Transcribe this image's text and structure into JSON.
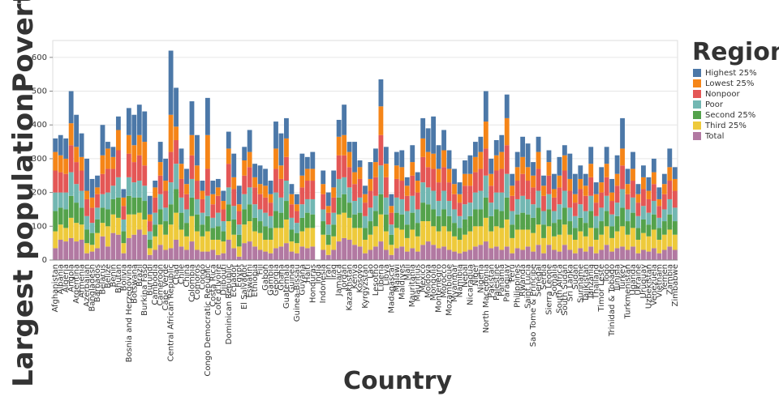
{
  "chart_data": {
    "type": "stacked_bar",
    "x_label": "Country",
    "y_label": "Largest populationPoverty in Ye",
    "legend_title": "Region",
    "legend": "right",
    "grid": true,
    "ylim": [
      0,
      650
    ],
    "yticks": [
      0,
      100,
      200,
      300,
      400,
      500,
      600
    ],
    "categories": [
      "Afghanistan",
      "Albania",
      "Algeria",
      "Angola",
      "Argentina",
      "Armenia",
      "Azerbaijan",
      "Bangladesh",
      "Barbados",
      "Belarus",
      "Belize",
      "Benin",
      "Bhutan",
      "Bolivia",
      "Bosnia and Herzegovina",
      "Botswana",
      "Brazil",
      "Burkina Faso",
      "Burundi",
      "Cambodia",
      "Cameroon",
      "Cape Verde",
      "Central African Republic",
      "Chad",
      "Chile",
      "China",
      "Colombia",
      "Comoros",
      "Congo",
      "Congo Democratic Republic",
      "Costa Rica",
      "Cote d'Ivoire",
      "Djibouti",
      "Dominican Republic",
      "Ecuador",
      "Egypt",
      "El Salvador",
      "Eswatini",
      "Ethiopia",
      "Fiji",
      "Gabon",
      "Gambia",
      "Georgia",
      "Ghana",
      "Guatemala",
      "Guinea",
      "Guinea-Bissau",
      "Guyana",
      "Haiti",
      "Honduras",
      "India",
      "Indonesia",
      "Iran",
      "Iraq",
      "Jamaica",
      "Jordan",
      "Kazakhstan",
      "Kenya",
      "Kosovo",
      "Kyrgyzstan",
      "Lao",
      "Lesotho",
      "Liberia",
      "Libya",
      "Madagascar",
      "Malawi",
      "Maldives",
      "Mali",
      "Mauritania",
      "Mauritius",
      "Mexico",
      "Moldova",
      "Mongolia",
      "Montenegro",
      "Morocco",
      "Mozambique",
      "Myanmar",
      "Namibia",
      "Nepal",
      "Nicaragua",
      "Niger",
      "Nigeria",
      "North Macedonia",
      "Pakistan",
      "Palestine",
      "Panama",
      "Paraguay",
      "Peru",
      "Philippines",
      "Rwanda",
      "Saint Lucia",
      "Sao Tome & Principe",
      "Senegal",
      "Serbia",
      "Sierra Leone",
      "Somalia",
      "South Africa",
      "South Sudan",
      "Sri Lanka",
      "Sudan",
      "Suriname",
      "Tajikistan",
      "Tanzania",
      "Thailand",
      "Timor Leste",
      "Togo",
      "Trinidad & Tobago",
      "Tunisia",
      "Turkey",
      "Turkmenistan",
      "Uganda",
      "Ukraine",
      "Uruguay",
      "Uzbekistan",
      "Venezuela",
      "Vietnam",
      "Yemen",
      "Zambia",
      "Zimbabwe"
    ],
    "series": [
      {
        "name": "Highest 25%",
        "color": "#4c78a8",
        "values": [
          40,
          60,
          60,
          95,
          95,
          70,
          95,
          55,
          35,
          90,
          20,
          30,
          40,
          25,
          80,
          90,
          90,
          90,
          55,
          20,
          60,
          65,
          190,
          115,
          45,
          45,
          100,
          90,
          30,
          110,
          40,
          25,
          30,
          50,
          70,
          55,
          40,
          65,
          40,
          55,
          50,
          40,
          80,
          95,
          60,
          30,
          30,
          65,
          35,
          50,
          null,
          40,
          40,
          50,
          50,
          90,
          30,
          90,
          20,
          25,
          50,
          40,
          80,
          50,
          35,
          40,
          50,
          25,
          50,
          25,
          60,
          70,
          110,
          70,
          60,
          55,
          45,
          35,
          40,
          55,
          45,
          45,
          90,
          45,
          45,
          50,
          70,
          35,
          45,
          60,
          70,
          40,
          45,
          30,
          35,
          45,
          55,
          30,
          75,
          60,
          40,
          35,
          50,
          35,
          45,
          50,
          40,
          55,
          90,
          45,
          50,
          30,
          35,
          40,
          40,
          35,
          30,
          55,
          35
        ]
      },
      {
        "name": "Lowest 25%",
        "color": "#f58518",
        "values": [
          55,
          50,
          45,
          65,
          45,
          40,
          25,
          30,
          20,
          55,
          60,
          35,
          60,
          25,
          55,
          50,
          60,
          70,
          20,
          30,
          40,
          30,
          110,
          40,
          45,
          30,
          60,
          45,
          25,
          100,
          30,
          25,
          25,
          45,
          35,
          20,
          45,
          45,
          30,
          30,
          35,
          25,
          60,
          40,
          55,
          30,
          20,
          35,
          35,
          35,
          null,
          30,
          20,
          30,
          55,
          60,
          45,
          35,
          35,
          25,
          35,
          45,
          85,
          40,
          20,
          40,
          40,
          30,
          40,
          35,
          55,
          45,
          45,
          40,
          50,
          40,
          30,
          25,
          35,
          35,
          45,
          50,
          80,
          35,
          45,
          50,
          80,
          30,
          40,
          50,
          40,
          35,
          50,
          30,
          40,
          25,
          35,
          45,
          35,
          25,
          30,
          30,
          40,
          25,
          30,
          40,
          25,
          35,
          50,
          30,
          35,
          25,
          35,
          25,
          35,
          20,
          30,
          40,
          35
        ]
      },
      {
        "name": "Nonpoor",
        "color": "#e45756",
        "values": [
          65,
          60,
          55,
          80,
          65,
          60,
          50,
          45,
          40,
          60,
          70,
          50,
          80,
          40,
          70,
          60,
          75,
          60,
          30,
          45,
          55,
          50,
          90,
          70,
          55,
          45,
          70,
          55,
          40,
          80,
          40,
          50,
          35,
          70,
          50,
          40,
          55,
          60,
          50,
          45,
          45,
          40,
          70,
          55,
          70,
          40,
          35,
          50,
          55,
          55,
          null,
          45,
          35,
          45,
          70,
          65,
          60,
          50,
          55,
          40,
          50,
          55,
          90,
          60,
          35,
          55,
          55,
          45,
          60,
          50,
          75,
          60,
          65,
          55,
          70,
          55,
          45,
          40,
          55,
          50,
          60,
          65,
          80,
          50,
          65,
          70,
          85,
          45,
          55,
          65,
          55,
          50,
          65,
          45,
          55,
          40,
          50,
          60,
          50,
          40,
          45,
          45,
          55,
          40,
          45,
          55,
          40,
          50,
          70,
          45,
          50,
          40,
          50,
          40,
          50,
          35,
          45,
          55,
          50
        ]
      },
      {
        "name": "Poor",
        "color": "#72b7b2",
        "values": [
          55,
          45,
          50,
          70,
          55,
          50,
          40,
          30,
          35,
          40,
          50,
          40,
          60,
          35,
          55,
          45,
          50,
          45,
          25,
          35,
          45,
          40,
          65,
          75,
          45,
          40,
          55,
          45,
          35,
          60,
          30,
          40,
          30,
          50,
          40,
          30,
          45,
          50,
          40,
          35,
          40,
          35,
          55,
          45,
          60,
          35,
          30,
          40,
          40,
          45,
          null,
          35,
          30,
          35,
          55,
          50,
          45,
          40,
          45,
          35,
          40,
          45,
          85,
          50,
          30,
          45,
          45,
          40,
          50,
          40,
          60,
          50,
          55,
          45,
          55,
          45,
          40,
          35,
          45,
          40,
          50,
          55,
          65,
          40,
          50,
          55,
          70,
          40,
          45,
          50,
          45,
          40,
          50,
          40,
          45,
          35,
          45,
          50,
          40,
          35,
          40,
          35,
          45,
          35,
          40,
          45,
          35,
          40,
          55,
          35,
          45,
          35,
          40,
          35,
          40,
          30,
          35,
          45,
          40
        ]
      },
      {
        "name": "Second 25%",
        "color": "#54a24b",
        "values": [
          60,
          50,
          55,
          65,
          60,
          50,
          40,
          35,
          40,
          45,
          50,
          45,
          60,
          35,
          55,
          50,
          45,
          55,
          25,
          35,
          45,
          40,
          60,
          70,
          50,
          40,
          55,
          50,
          35,
          45,
          35,
          40,
          30,
          50,
          45,
          35,
          45,
          50,
          40,
          35,
          40,
          35,
          50,
          45,
          55,
          35,
          30,
          40,
          45,
          40,
          null,
          40,
          30,
          35,
          50,
          55,
          45,
          40,
          45,
          35,
          40,
          45,
          60,
          50,
          30,
          45,
          45,
          40,
          50,
          40,
          55,
          50,
          50,
          45,
          50,
          45,
          40,
          35,
          45,
          45,
          50,
          50,
          60,
          45,
          50,
          50,
          65,
          40,
          45,
          50,
          45,
          45,
          50,
          40,
          50,
          40,
          45,
          50,
          40,
          35,
          40,
          40,
          50,
          35,
          40,
          45,
          35,
          45,
          55,
          40,
          45,
          35,
          40,
          35,
          45,
          35,
          40,
          45,
          40
        ]
      },
      {
        "name": "Third 25%",
        "color": "#eeca3b",
        "values": [
          50,
          45,
          40,
          60,
          55,
          45,
          30,
          20,
          45,
          40,
          60,
          55,
          50,
          30,
          70,
          60,
          50,
          45,
          20,
          40,
          60,
          45,
          70,
          80,
          50,
          40,
          75,
          55,
          45,
          60,
          30,
          45,
          35,
          55,
          40,
          30,
          55,
          60,
          45,
          50,
          35,
          40,
          60,
          55,
          70,
          30,
          30,
          45,
          60,
          55,
          null,
          45,
          30,
          40,
          80,
          75,
          65,
          50,
          55,
          40,
          45,
          60,
          80,
          55,
          30,
          60,
          50,
          40,
          55,
          45,
          70,
          60,
          55,
          50,
          60,
          55,
          45,
          40,
          50,
          55,
          60,
          55,
          70,
          50,
          60,
          65,
          80,
          45,
          55,
          60,
          50,
          55,
          60,
          45,
          55,
          40,
          50,
          60,
          45,
          40,
          50,
          45,
          55,
          40,
          45,
          55,
          40,
          50,
          60,
          45,
          55,
          40,
          50,
          45,
          55,
          40,
          45,
          50,
          45
        ]
      },
      {
        "name": "Total",
        "color": "#b279a2",
        "values": [
          35,
          60,
          55,
          65,
          55,
          60,
          20,
          25,
          35,
          70,
          40,
          80,
          75,
          20,
          65,
          75,
          90,
          75,
          15,
          30,
          45,
          30,
          35,
          60,
          40,
          30,
          55,
          30,
          25,
          25,
          30,
          15,
          20,
          60,
          35,
          10,
          50,
          55,
          40,
          30,
          25,
          20,
          35,
          40,
          50,
          25,
          20,
          40,
          35,
          40,
          null,
          30,
          15,
          30,
          55,
          65,
          60,
          45,
          40,
          20,
          30,
          40,
          55,
          30,
          15,
          35,
          40,
          25,
          35,
          25,
          45,
          55,
          45,
          35,
          40,
          30,
          25,
          20,
          25,
          30,
          40,
          45,
          55,
          35,
          40,
          30,
          40,
          20,
          35,
          30,
          40,
          25,
          45,
          20,
          45,
          30,
          25,
          45,
          30,
          20,
          35,
          25,
          40,
          20,
          30,
          45,
          25,
          35,
          40,
          30,
          40,
          20,
          30,
          25,
          35,
          20,
          30,
          40,
          30
        ]
      }
    ]
  }
}
